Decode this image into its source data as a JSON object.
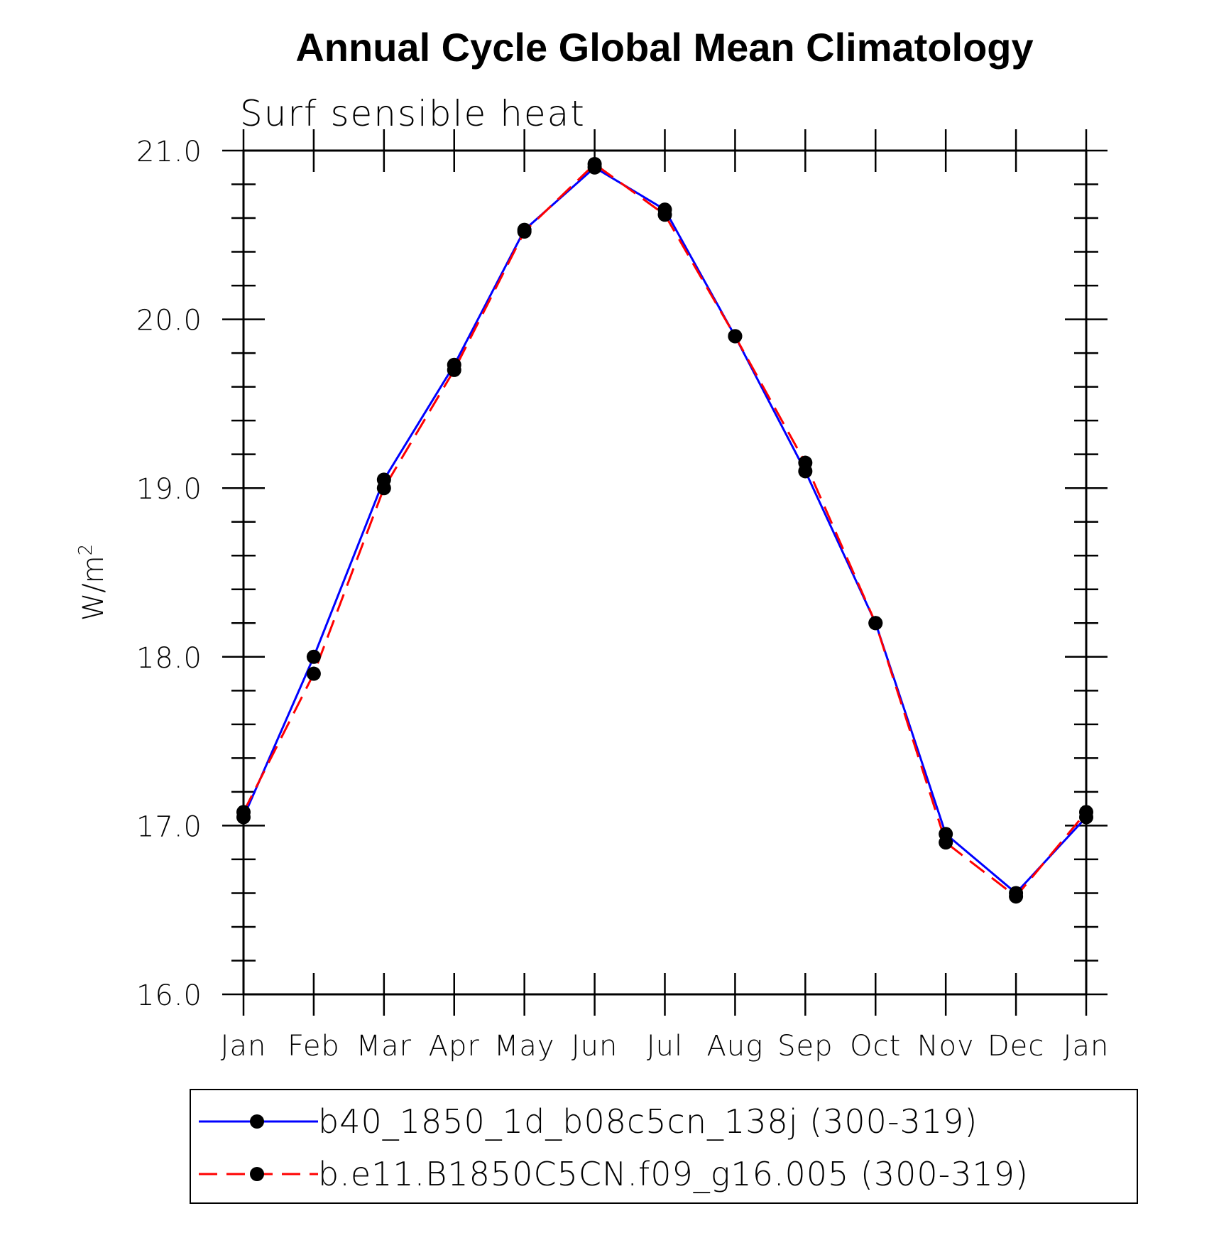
{
  "chart_data": {
    "type": "line",
    "title": "Annual Cycle Global Mean Climatology",
    "subtitle": "Surf sensible heat",
    "ylabel": "W/m",
    "ylabel_superscript": "2",
    "categories": [
      "Jan",
      "Feb",
      "Mar",
      "Apr",
      "May",
      "Jun",
      "Jul",
      "Aug",
      "Sep",
      "Oct",
      "Nov",
      "Dec",
      "Jan"
    ],
    "ylim": [
      16.0,
      21.0
    ],
    "yticks": [
      "16.0",
      "17.0",
      "18.0",
      "19.0",
      "20.0",
      "21.0"
    ],
    "y_minor_step": 0.2,
    "grid": false,
    "legend_position": "bottom",
    "series": [
      {
        "name": "b40_1850_1d_b08c5cn_138j (300-319)",
        "color": "#0000ff",
        "line_style": "solid",
        "marker": "filled-circle",
        "values": [
          17.05,
          18.0,
          19.05,
          19.73,
          20.53,
          20.9,
          20.65,
          19.9,
          19.1,
          18.2,
          16.95,
          16.6,
          17.05
        ]
      },
      {
        "name": "b.e11.B1850C5CN.f09_g16.005 (300-319)",
        "color": "#ff0000",
        "line_style": "dashed",
        "marker": "filled-circle",
        "values": [
          17.08,
          17.9,
          19.0,
          19.7,
          20.52,
          20.92,
          20.62,
          19.9,
          19.15,
          18.2,
          16.9,
          16.58,
          17.08
        ]
      }
    ]
  }
}
